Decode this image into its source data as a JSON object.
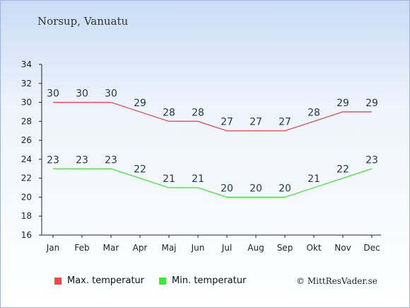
{
  "location": "Norsup, Vanuatu",
  "credit": "© MittResVader.se",
  "colors": {
    "max": "#e84b4b",
    "min": "#3ee83e"
  },
  "chart_data": {
    "type": "line",
    "categories": [
      "Jan",
      "Feb",
      "Mar",
      "Apr",
      "Maj",
      "Jun",
      "Jul",
      "Aug",
      "Sep",
      "Okt",
      "Nov",
      "Dec"
    ],
    "series": [
      {
        "name": "Max. temperatur",
        "values": [
          30,
          30,
          30,
          29,
          28,
          28,
          27,
          27,
          27,
          28,
          29,
          29
        ]
      },
      {
        "name": "Min. temperatur",
        "values": [
          23,
          23,
          23,
          22,
          21,
          21,
          20,
          20,
          20,
          21,
          22,
          23
        ]
      }
    ],
    "ylim": [
      16,
      34
    ],
    "yticks": [
      16,
      18,
      20,
      22,
      24,
      26,
      28,
      30,
      32,
      34
    ],
    "legend_position": "bottom-left"
  }
}
